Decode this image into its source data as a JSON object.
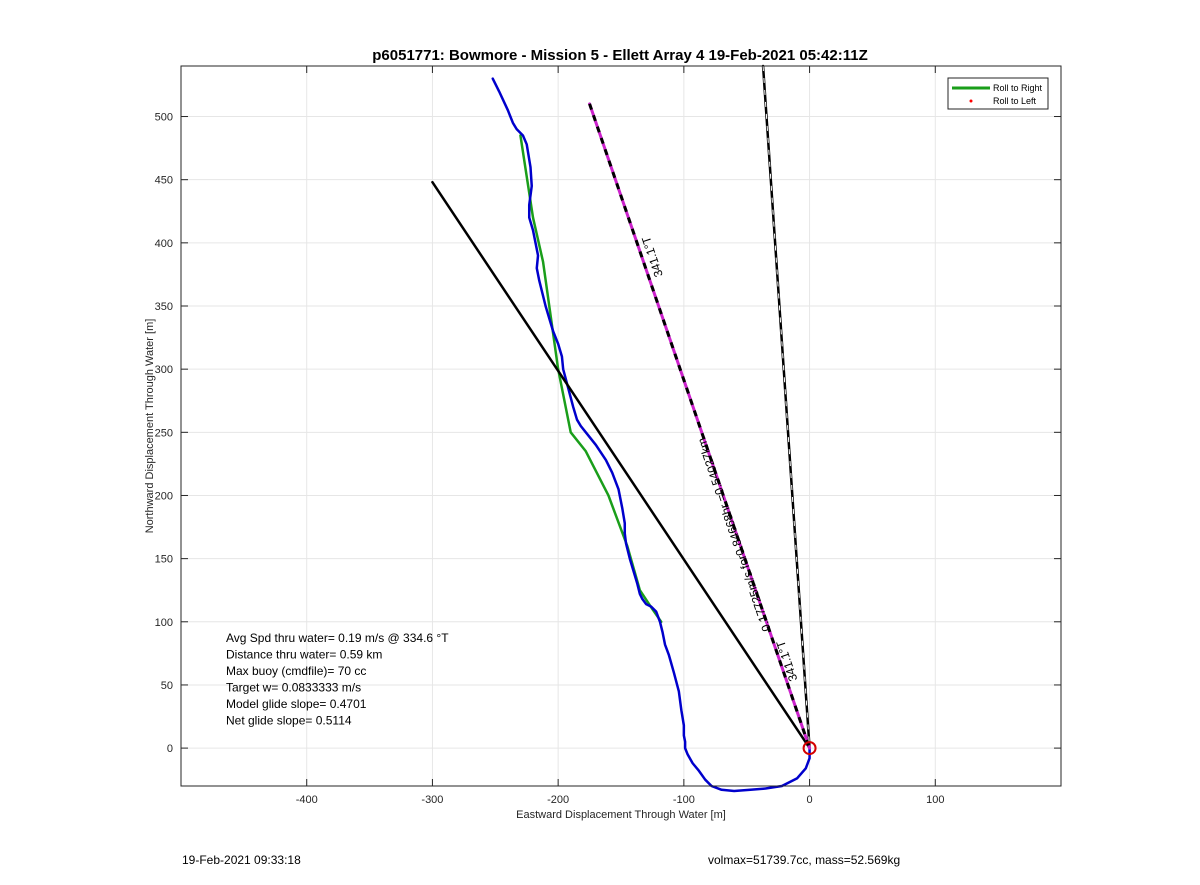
{
  "chart_data": {
    "type": "line",
    "title": "p6051771: Bowmore - Mission 5 - Ellett Array 4 19-Feb-2021 05:42:11Z",
    "xlabel": "Eastward Displacement Through Water [m]",
    "ylabel": "Northward Displacement Through Water [m]",
    "xlim": [
      -500,
      200
    ],
    "ylim": [
      -30,
      540
    ],
    "xticks": [
      -400,
      -300,
      -200,
      -100,
      0,
      100
    ],
    "yticks": [
      0,
      50,
      100,
      150,
      200,
      250,
      300,
      350,
      400,
      450,
      500
    ],
    "grid": true,
    "legend": {
      "placement": "top-right",
      "entries": [
        {
          "label": "Roll to Right",
          "color": "#1a9e1a",
          "marker": "line"
        },
        {
          "label": "Roll to Left",
          "color": "#ff0000",
          "marker": "dot"
        }
      ]
    },
    "series": [
      {
        "name": "Roll to Right",
        "color": "#1a9e1a",
        "x": [
          -230,
          -220,
          -212,
          -200,
          -190,
          -178,
          -160,
          -145,
          -135,
          -125,
          -118
        ],
        "y": [
          485,
          420,
          385,
          300,
          250,
          235,
          200,
          160,
          125,
          110,
          100
        ]
      },
      {
        "color": "#0000cc",
        "x": [
          -252,
          -247,
          -240,
          -236,
          -233,
          -228,
          -225,
          -222,
          -221,
          -223,
          -223,
          -220,
          -218,
          -216,
          -217,
          -215,
          -210,
          -207,
          -204,
          -200,
          -197,
          -196,
          -192,
          -188,
          -185,
          -182,
          -178,
          -170,
          -162,
          -157,
          -152,
          -149,
          -147,
          -147,
          -146,
          -143,
          -140,
          -137,
          -135,
          -133,
          -130,
          -126,
          -122,
          -119,
          -117,
          -115,
          -112,
          -108,
          -104,
          -102,
          -100,
          -100,
          -99,
          -99,
          -97,
          -93,
          -88,
          -83,
          -78,
          -70,
          -60,
          -47,
          -35,
          -22,
          -10,
          -3,
          0,
          0,
          0
        ],
        "y": [
          530,
          520,
          505,
          495,
          490,
          485,
          478,
          460,
          445,
          430,
          420,
          410,
          400,
          390,
          380,
          370,
          350,
          340,
          330,
          320,
          310,
          300,
          285,
          270,
          260,
          255,
          250,
          240,
          228,
          218,
          205,
          190,
          178,
          170,
          162,
          150,
          140,
          130,
          122,
          118,
          114,
          112,
          108,
          100,
          92,
          82,
          74,
          60,
          45,
          30,
          18,
          10,
          5,
          0,
          -5,
          -12,
          -18,
          -25,
          -30,
          -33,
          -34,
          -33,
          -32,
          -30,
          -24,
          -16,
          -8,
          0,
          0
        ]
      },
      {
        "color": "#000000",
        "x": [
          -300,
          0
        ],
        "y": [
          448,
          0
        ]
      },
      {
        "color": "#000000",
        "x": [
          -37,
          0
        ],
        "y": [
          540,
          0
        ]
      },
      {
        "color": "#cc22cc",
        "x": [
          -175,
          0
        ],
        "y": [
          510,
          0
        ]
      }
    ],
    "annotations": [
      {
        "text": "341.1°T",
        "x": -122,
        "y": 390
      },
      {
        "text": "0.17725m/s for0.84668hr =0.54027km",
        "x": -57,
        "y": 170
      },
      {
        "text": "341.1°T",
        "x": -15,
        "y": 70
      }
    ],
    "marker": {
      "shape": "circle",
      "color": "#d40000",
      "x": 0,
      "y": 0
    }
  },
  "stats": [
    "Avg Spd thru water=  0.19 m/s @ 334.6 °T",
    "Distance thru water=  0.59 km",
    "Max buoy (cmdfile)= 70 cc",
    "Target w= 0.0833333 m/s",
    "Model glide slope= 0.4701",
    "Net glide slope= 0.5114"
  ],
  "footer": {
    "left": "19-Feb-2021 09:33:18",
    "right": "volmax=51739.7cc, mass=52.569kg"
  }
}
